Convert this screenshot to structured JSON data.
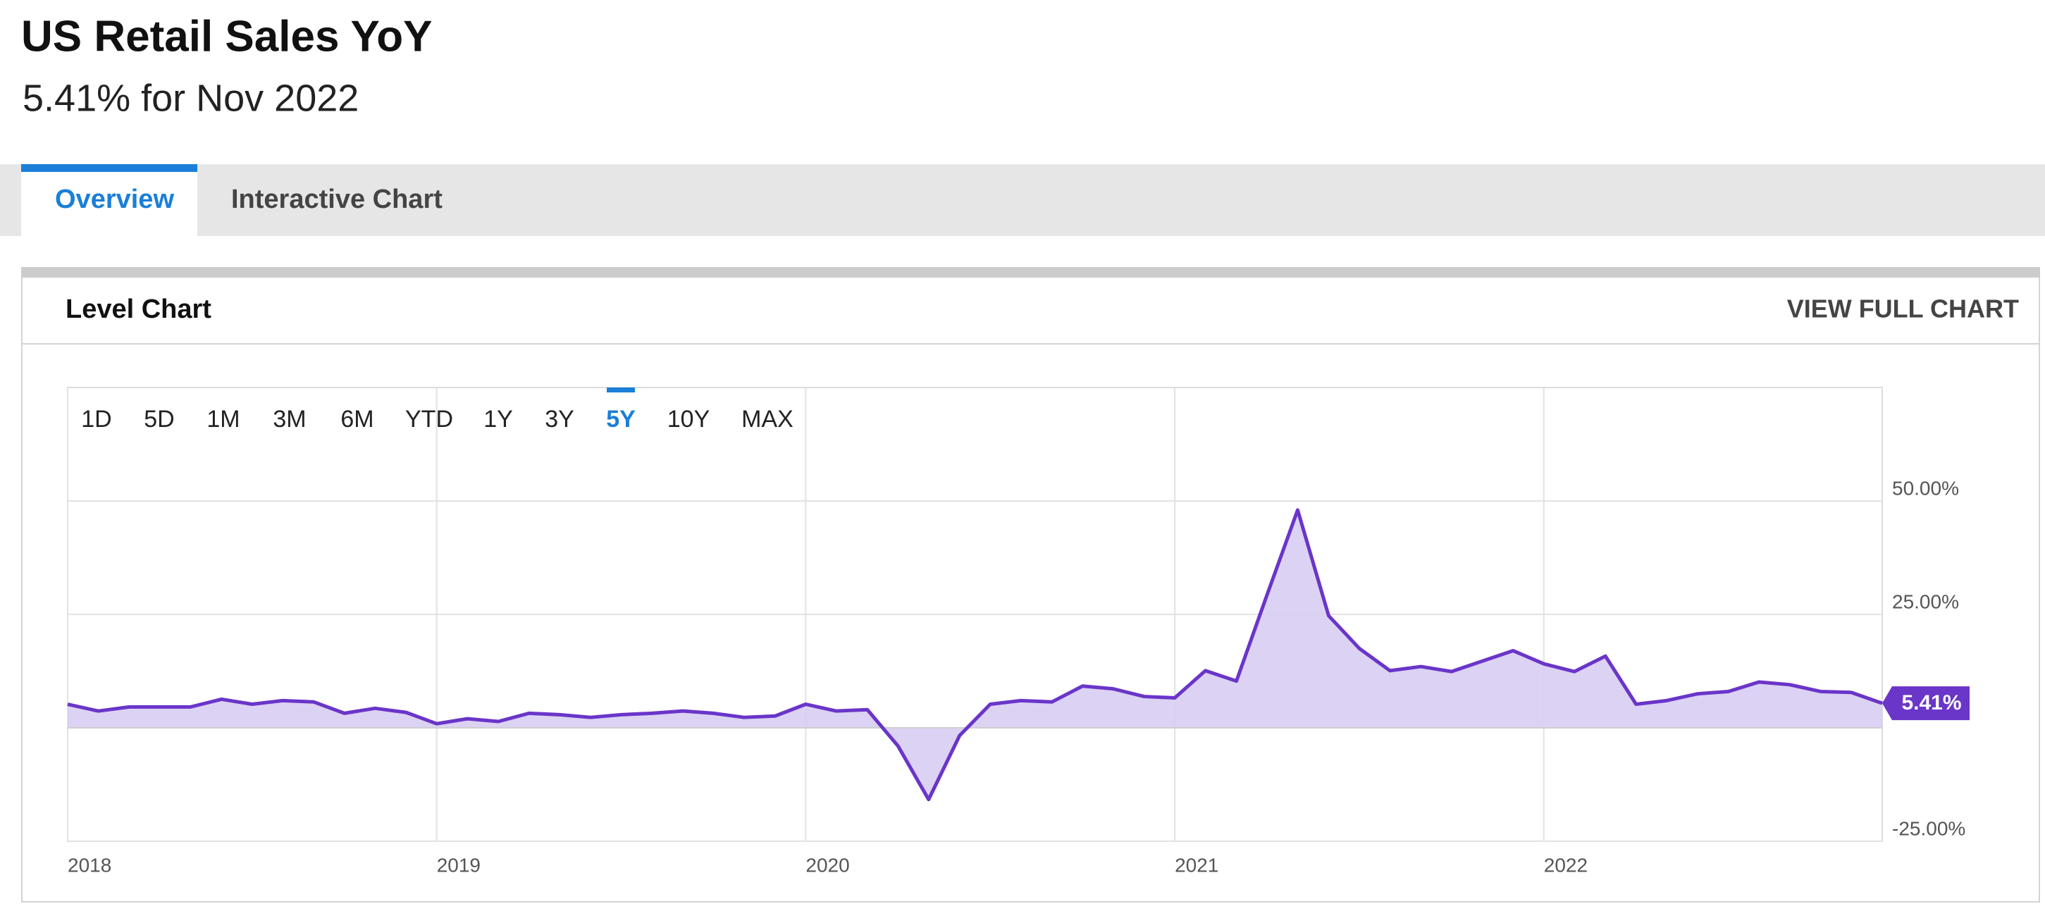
{
  "header": {
    "title": "US Retail Sales YoY",
    "subtitle": "5.41% for Nov 2022"
  },
  "tabs": [
    "Overview",
    "Interactive Chart"
  ],
  "card": {
    "title": "Level Chart",
    "action": "VIEW FULL CHART"
  },
  "ranges": [
    "1D",
    "5D",
    "1M",
    "3M",
    "6M",
    "YTD",
    "1Y",
    "3Y",
    "5Y",
    "10Y",
    "MAX"
  ],
  "selected_range": "5Y",
  "chart_data": {
    "type": "area",
    "x": [
      2018,
      2018.083,
      2018.167,
      2018.25,
      2018.333,
      2018.417,
      2018.5,
      2018.583,
      2018.667,
      2018.75,
      2018.833,
      2018.917,
      2019,
      2019.083,
      2019.167,
      2019.25,
      2019.333,
      2019.417,
      2019.5,
      2019.583,
      2019.667,
      2019.75,
      2019.833,
      2019.917,
      2020,
      2020.083,
      2020.167,
      2020.25,
      2020.333,
      2020.417,
      2020.5,
      2020.583,
      2020.667,
      2020.75,
      2020.833,
      2020.917,
      2021,
      2021.083,
      2021.167,
      2021.25,
      2021.333,
      2021.417,
      2021.5,
      2021.583,
      2021.667,
      2021.75,
      2021.833,
      2021.917,
      2022,
      2022.083,
      2022.167,
      2022.25,
      2022.333,
      2022.417,
      2022.5,
      2022.583,
      2022.667,
      2022.75,
      2022.833,
      2022.917
    ],
    "series": [
      {
        "name": "US Retail Sales YoY",
        "color": "#6a35c9",
        "fill": "#d8cdf2",
        "values": [
          5.2,
          3.7,
          4.6,
          4.6,
          4.6,
          6.3,
          5.2,
          6.0,
          5.7,
          3.2,
          4.3,
          3.4,
          0.9,
          2.0,
          1.4,
          3.2,
          2.9,
          2.3,
          2.9,
          3.2,
          3.7,
          3.2,
          2.3,
          2.6,
          5.2,
          3.7,
          4.0,
          -4.0,
          -15.8,
          -1.7,
          5.2,
          6.0,
          5.7,
          9.2,
          8.6,
          6.9,
          6.6,
          12.6,
          10.3,
          29.3,
          48.0,
          24.7,
          17.5,
          12.6,
          13.5,
          12.4,
          14.7,
          17.0,
          14.1,
          12.4,
          15.8,
          5.2,
          6.0,
          7.5,
          8.0,
          10.1,
          9.5,
          8.0,
          7.8,
          5.41
        ],
        "last_label": "5.41%"
      }
    ],
    "xlim": [
      2018,
      2022.917
    ],
    "xticks": [
      2018,
      2019,
      2020,
      2021,
      2022
    ],
    "ylim": [
      -25,
      75
    ],
    "yticks": [
      {
        "value": 50,
        "label": "50.00%"
      },
      {
        "value": 25,
        "label": "25.00%"
      },
      {
        "value": -25,
        "label": "-25.00%"
      }
    ],
    "grid": true
  }
}
